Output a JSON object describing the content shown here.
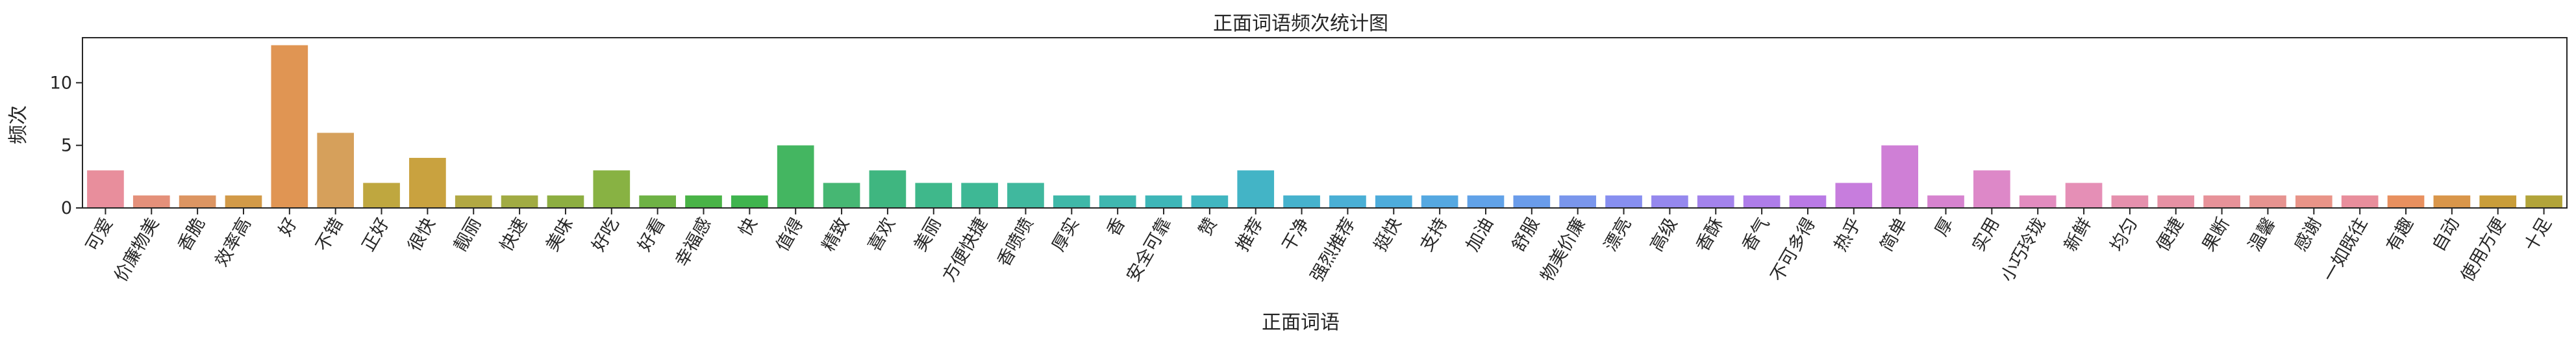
{
  "chart_data": {
    "type": "bar",
    "title": "正面词语频次统计图",
    "xlabel": "正面词语",
    "ylabel": "频次",
    "ylim": [
      0,
      13.6
    ],
    "yticks": [
      0,
      5,
      10
    ],
    "grid": false,
    "categories": [
      "可爱",
      "价廉物美",
      "香脆",
      "效率高",
      "好",
      "不错",
      "正好",
      "很快",
      "靓丽",
      "快速",
      "美味",
      "好吃",
      "好看",
      "幸福感",
      "快",
      "值得",
      "精致",
      "喜欢",
      "美丽",
      "方便快捷",
      "香喷喷",
      "厚实",
      "香",
      "安全可靠",
      "赞",
      "推荐",
      "干净",
      "强烈推荐",
      "挺快",
      "支持",
      "加油",
      "舒服",
      "物美价廉",
      "漂亮",
      "高级",
      "香酥",
      "香气",
      "不可多得",
      "热乎",
      "简单",
      "厚",
      "实用",
      "小巧玲珑",
      "新鲜",
      "均匀",
      "便捷",
      "果断",
      "温馨",
      "感谢",
      "一如既往",
      "有趣",
      "自动",
      "使用方便",
      "十足"
    ],
    "values": [
      3,
      1,
      1,
      1,
      13,
      6,
      2,
      4,
      1,
      1,
      1,
      3,
      1,
      1,
      1,
      5,
      2,
      3,
      2,
      2,
      2,
      1,
      1,
      1,
      1,
      3,
      1,
      1,
      1,
      1,
      1,
      1,
      1,
      1,
      1,
      1,
      1,
      1,
      2,
      5,
      1,
      3,
      1,
      2,
      1,
      1,
      1,
      1,
      1,
      1,
      1,
      1,
      1,
      1
    ],
    "colors": [
      "#e88e9c",
      "#e4907a",
      "#dc9562",
      "#d29a48",
      "#e09553",
      "#d6a05b",
      "#bfa73f",
      "#c9a23f",
      "#b2a843",
      "#a1ab43",
      "#8dae41",
      "#88b243",
      "#6eb245",
      "#49b347",
      "#3fb44e",
      "#44b661",
      "#46b773",
      "#3fb680",
      "#3fb88b",
      "#3eb895",
      "#40b89e",
      "#3fb8a8",
      "#3fb7b0",
      "#3eb6b8",
      "#41b6c0",
      "#43b4c6",
      "#46b2cd",
      "#4aafd5",
      "#4eacdb",
      "#55a8e1",
      "#61a2e8",
      "#6a9cea",
      "#7a96ec",
      "#878ff0",
      "#9588ee",
      "#a383ec",
      "#ae7de9",
      "#b97ae5",
      "#c77ddd",
      "#cf7fd6",
      "#d683cf",
      "#dd88c8",
      "#e28cbf",
      "#e58fb6",
      "#e590ad",
      "#e691a4",
      "#e79299",
      "#e69390",
      "#e99488",
      "#e88e9c",
      "#e8905f",
      "#d9964a",
      "#c99d3a",
      "#b2a43a"
    ]
  }
}
